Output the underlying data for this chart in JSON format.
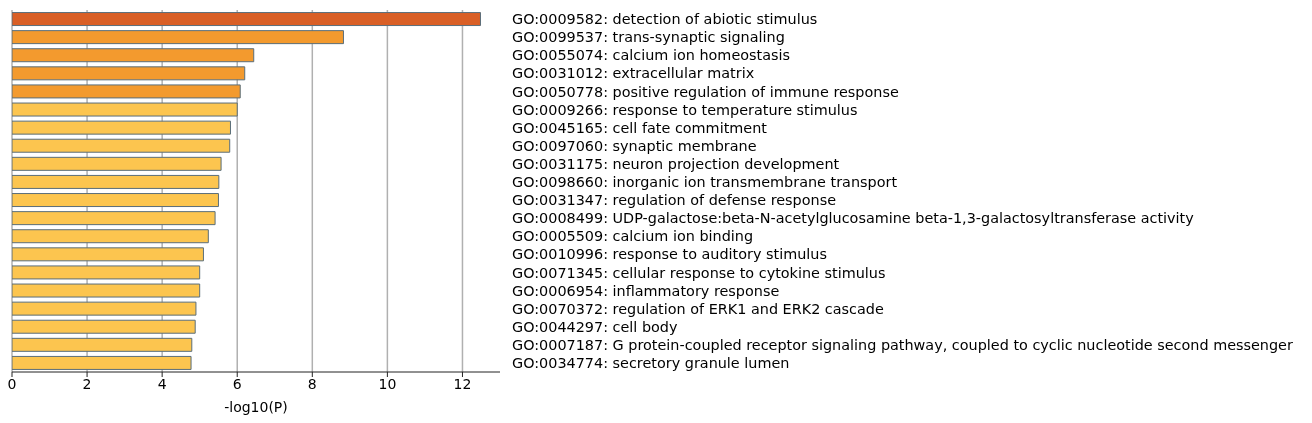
{
  "chart_data": {
    "type": "bar",
    "orientation": "horizontal",
    "xlabel": "-log10(P)",
    "categories": [
      "GO:0009582: detection of abiotic stimulus",
      "GO:0099537: trans-synaptic signaling",
      "GO:0055074: calcium ion homeostasis",
      "GO:0031012: extracellular matrix",
      "GO:0050778: positive regulation of immune response",
      "GO:0009266: response to temperature stimulus",
      "GO:0045165: cell fate commitment",
      "GO:0097060: synaptic membrane",
      "GO:0031175: neuron projection development",
      "GO:0098660: inorganic ion transmembrane transport",
      "GO:0031347: regulation of defense response",
      "GO:0008499: UDP-galactose:beta-N-acetylglucosamine beta-1,3-galactosyltransferase activity",
      "GO:0005509: calcium ion binding",
      "GO:0010996: response to auditory stimulus",
      "GO:0071345: cellular response to cytokine stimulus",
      "GO:0006954: inflammatory response",
      "GO:0070372: regulation of ERK1 and ERK2 cascade",
      "GO:0044297: cell body",
      "GO:0007187: G protein-coupled receptor signaling pathway, coupled to cyclic nucleotide second messenger",
      "GO:0034774: secretory granule lumen"
    ],
    "values": [
      12.48,
      8.83,
      6.44,
      6.2,
      6.08,
      6.0,
      5.82,
      5.8,
      5.57,
      5.51,
      5.5,
      5.41,
      5.23,
      5.1,
      5.0,
      5.0,
      4.9,
      4.88,
      4.79,
      4.77
    ],
    "colors": [
      "#d95f26",
      "#f39a2e",
      "#f39a2e",
      "#f39a2e",
      "#f39a2e",
      "#fcc54f",
      "#fcc54f",
      "#fcc54f",
      "#fcc54f",
      "#fcc54f",
      "#fcc54f",
      "#fcc54f",
      "#fcc54f",
      "#fcc54f",
      "#fcc54f",
      "#fcc54f",
      "#fcc54f",
      "#fcc54f",
      "#fcc54f",
      "#fcc54f"
    ],
    "xlim": [
      0,
      13
    ],
    "xticks": [
      0,
      2,
      4,
      6,
      8,
      10,
      12
    ],
    "grid": "x",
    "legend": false
  }
}
